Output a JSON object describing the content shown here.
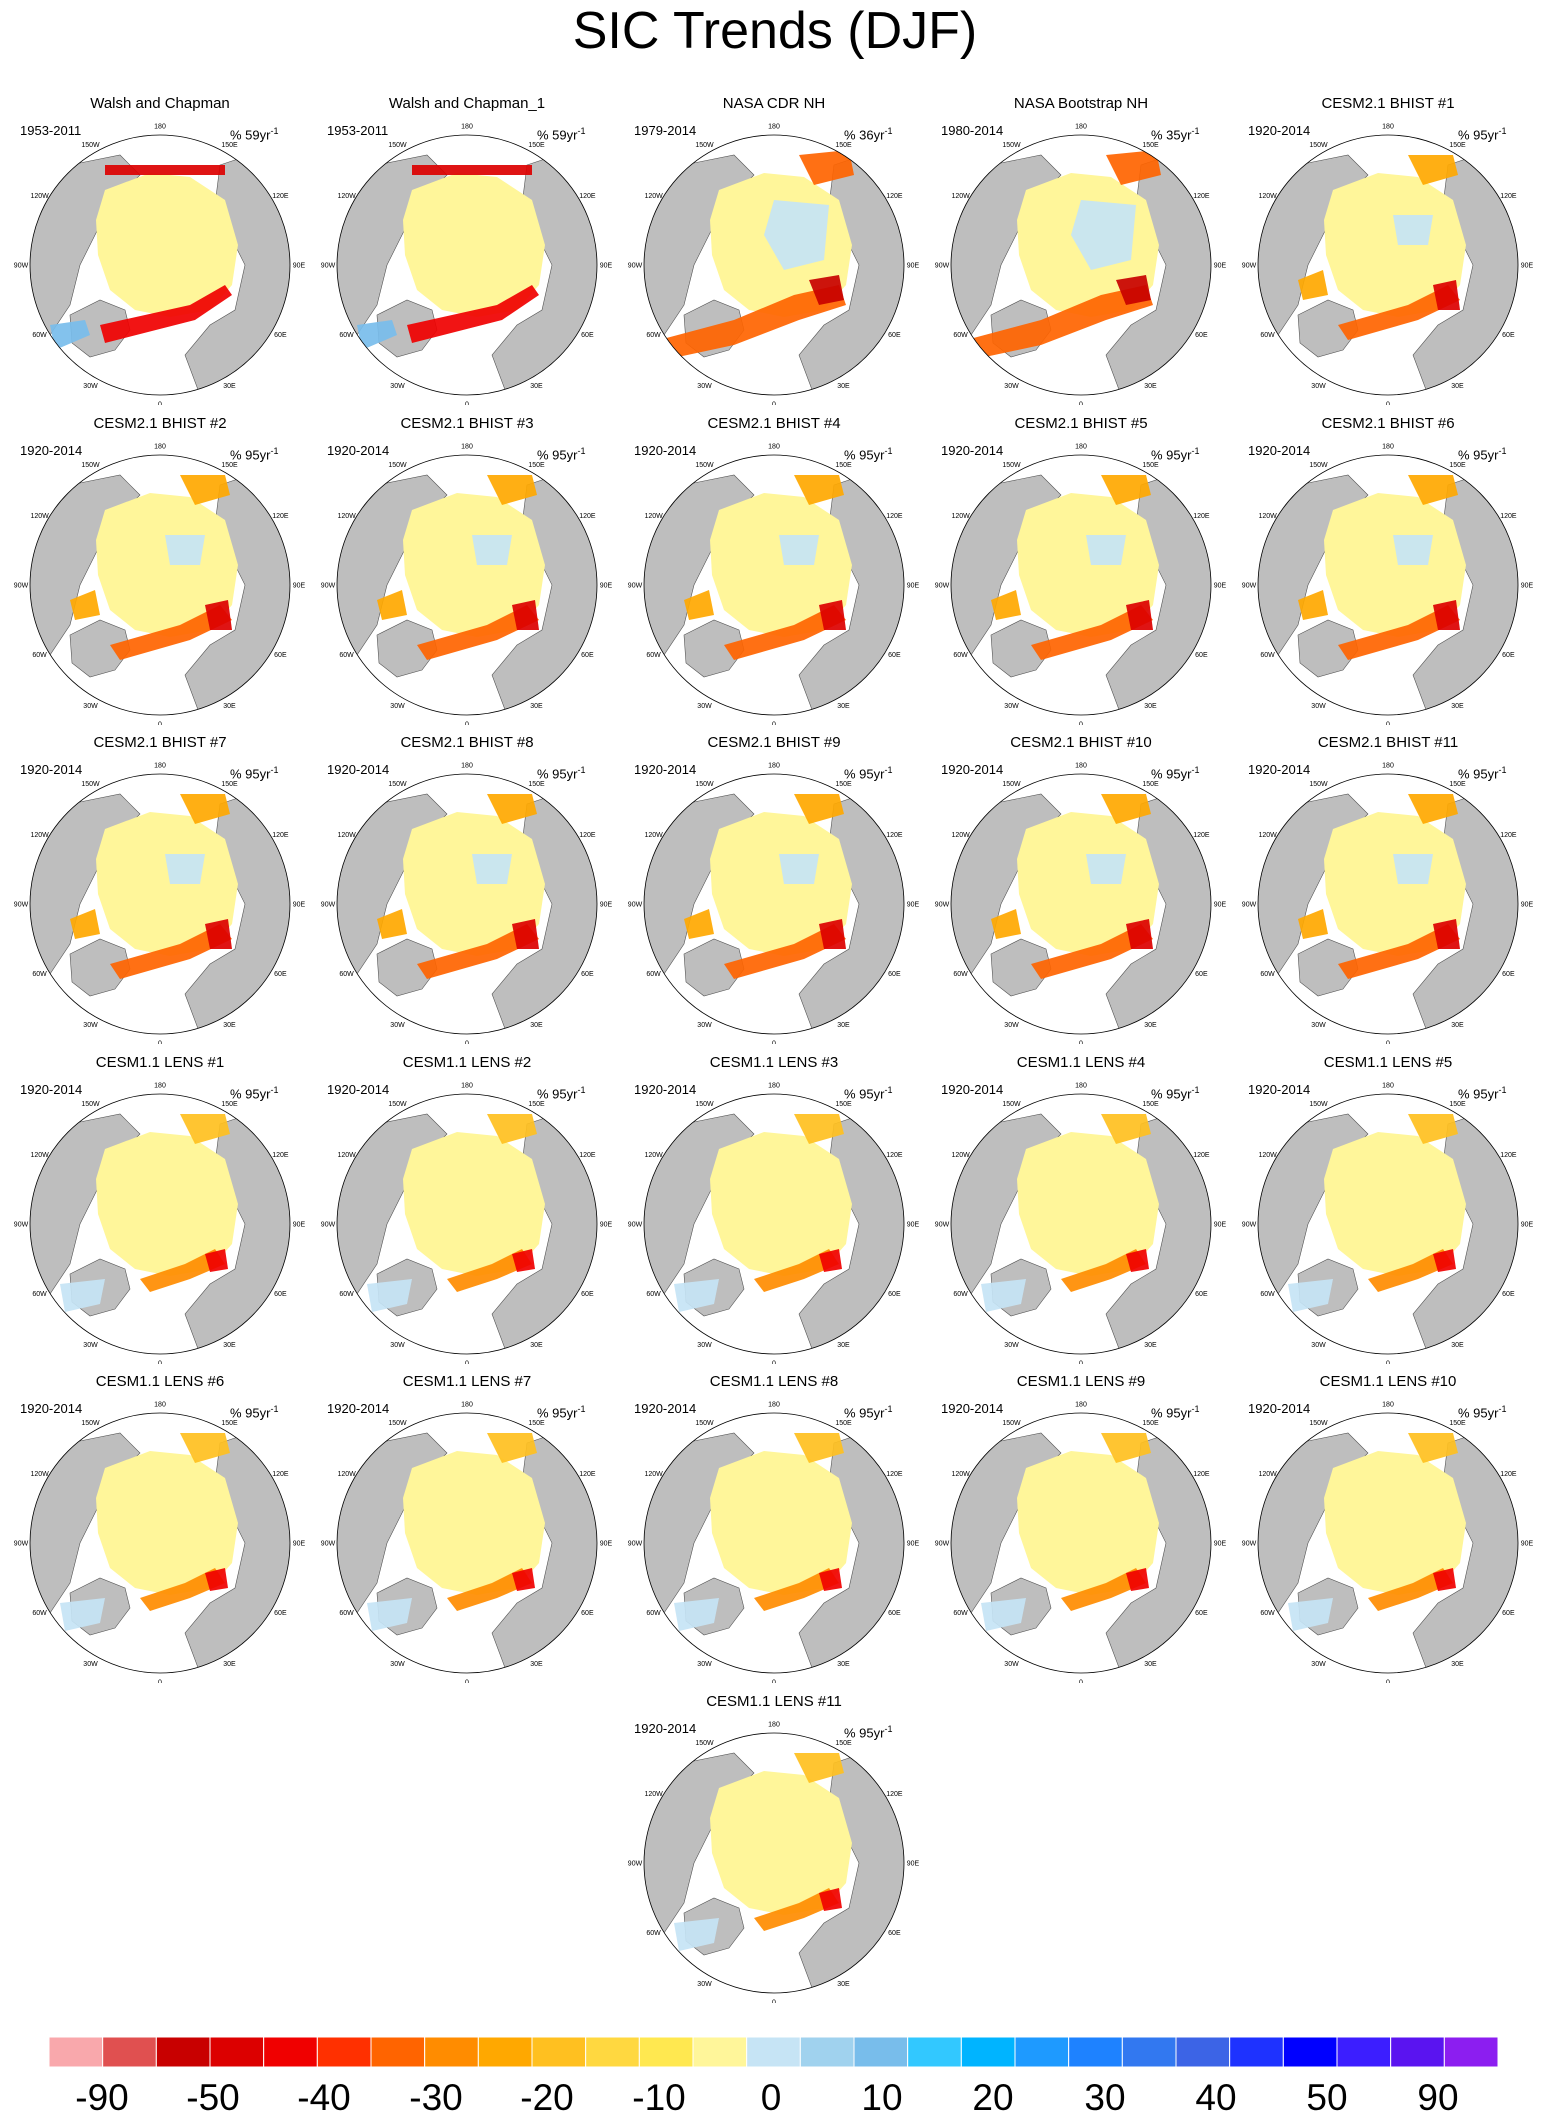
{
  "title": "SIC Trends (DJF)",
  "lon_labels": [
    "180",
    "150E",
    "120E",
    "90E",
    "60E",
    "30E",
    "0",
    "30W",
    "60W",
    "90W",
    "120W",
    "150W"
  ],
  "panels": [
    {
      "title": "Walsh and Chapman",
      "period": "1953-2011",
      "rate": "% 59yr",
      "style": "obs"
    },
    {
      "title": "Walsh and Chapman_1",
      "period": "1953-2011",
      "rate": "% 59yr",
      "style": "obs"
    },
    {
      "title": "NASA CDR NH",
      "period": "1979-2014",
      "rate": "% 36yr",
      "style": "sat"
    },
    {
      "title": "NASA Bootstrap NH",
      "period": "1980-2014",
      "rate": "% 35yr",
      "style": "sat"
    },
    {
      "title": "CESM2.1 BHIST #1",
      "period": "1920-2014",
      "rate": "% 95yr",
      "style": "model"
    },
    {
      "title": "CESM2.1 BHIST #2",
      "period": "1920-2014",
      "rate": "% 95yr",
      "style": "model"
    },
    {
      "title": "CESM2.1 BHIST #3",
      "period": "1920-2014",
      "rate": "% 95yr",
      "style": "model"
    },
    {
      "title": "CESM2.1 BHIST #4",
      "period": "1920-2014",
      "rate": "% 95yr",
      "style": "model"
    },
    {
      "title": "CESM2.1 BHIST #5",
      "period": "1920-2014",
      "rate": "% 95yr",
      "style": "model"
    },
    {
      "title": "CESM2.1 BHIST #6",
      "period": "1920-2014",
      "rate": "% 95yr",
      "style": "model"
    },
    {
      "title": "CESM2.1 BHIST #7",
      "period": "1920-2014",
      "rate": "% 95yr",
      "style": "model"
    },
    {
      "title": "CESM2.1 BHIST #8",
      "period": "1920-2014",
      "rate": "% 95yr",
      "style": "model"
    },
    {
      "title": "CESM2.1 BHIST #9",
      "period": "1920-2014",
      "rate": "% 95yr",
      "style": "model"
    },
    {
      "title": "CESM2.1 BHIST #10",
      "period": "1920-2014",
      "rate": "% 95yr",
      "style": "model"
    },
    {
      "title": "CESM2.1 BHIST #11",
      "period": "1920-2014",
      "rate": "% 95yr",
      "style": "model"
    },
    {
      "title": "CESM1.1 LENS #1",
      "period": "1920-2014",
      "rate": "% 95yr",
      "style": "lens"
    },
    {
      "title": "CESM1.1 LENS #2",
      "period": "1920-2014",
      "rate": "% 95yr",
      "style": "lens"
    },
    {
      "title": "CESM1.1 LENS #3",
      "period": "1920-2014",
      "rate": "% 95yr",
      "style": "lens"
    },
    {
      "title": "CESM1.1 LENS #4",
      "period": "1920-2014",
      "rate": "% 95yr",
      "style": "lens"
    },
    {
      "title": "CESM1.1 LENS #5",
      "period": "1920-2014",
      "rate": "% 95yr",
      "style": "lens"
    },
    {
      "title": "CESM1.1 LENS #6",
      "period": "1920-2014",
      "rate": "% 95yr",
      "style": "lens"
    },
    {
      "title": "CESM1.1 LENS #7",
      "period": "1920-2014",
      "rate": "% 95yr",
      "style": "lens"
    },
    {
      "title": "CESM1.1 LENS #8",
      "period": "1920-2014",
      "rate": "% 95yr",
      "style": "lens"
    },
    {
      "title": "CESM1.1 LENS #9",
      "period": "1920-2014",
      "rate": "% 95yr",
      "style": "lens"
    },
    {
      "title": "CESM1.1 LENS #10",
      "period": "1920-2014",
      "rate": "% 95yr",
      "style": "lens"
    },
    {
      "title": "CESM1.1 LENS #11",
      "period": "1920-2014",
      "rate": "% 95yr",
      "style": "lens"
    }
  ],
  "colorbar": {
    "colors": [
      "#f9a8ac",
      "#e05050",
      "#c80000",
      "#dc0000",
      "#f00000",
      "#ff3000",
      "#ff6400",
      "#ff8c00",
      "#ffa800",
      "#ffc020",
      "#ffd840",
      "#ffe850",
      "#fff69a",
      "#c6e4f5",
      "#a0d2ee",
      "#78bdeb",
      "#32c8ff",
      "#00b4ff",
      "#1e9aff",
      "#1e82ff",
      "#3278f0",
      "#3c64e6",
      "#1e32ff",
      "#0000ff",
      "#3c1eff",
      "#5a14f0",
      "#8c1ef0"
    ],
    "labels": [
      "-90",
      "-50",
      "-40",
      "-30",
      "-20",
      "-10",
      "0",
      "10",
      "20",
      "30",
      "40",
      "50",
      "90"
    ]
  },
  "colors": {
    "land": "#bebebe",
    "ice_yellow": "#fff69a",
    "ice_blue": "#c6e4f5"
  }
}
